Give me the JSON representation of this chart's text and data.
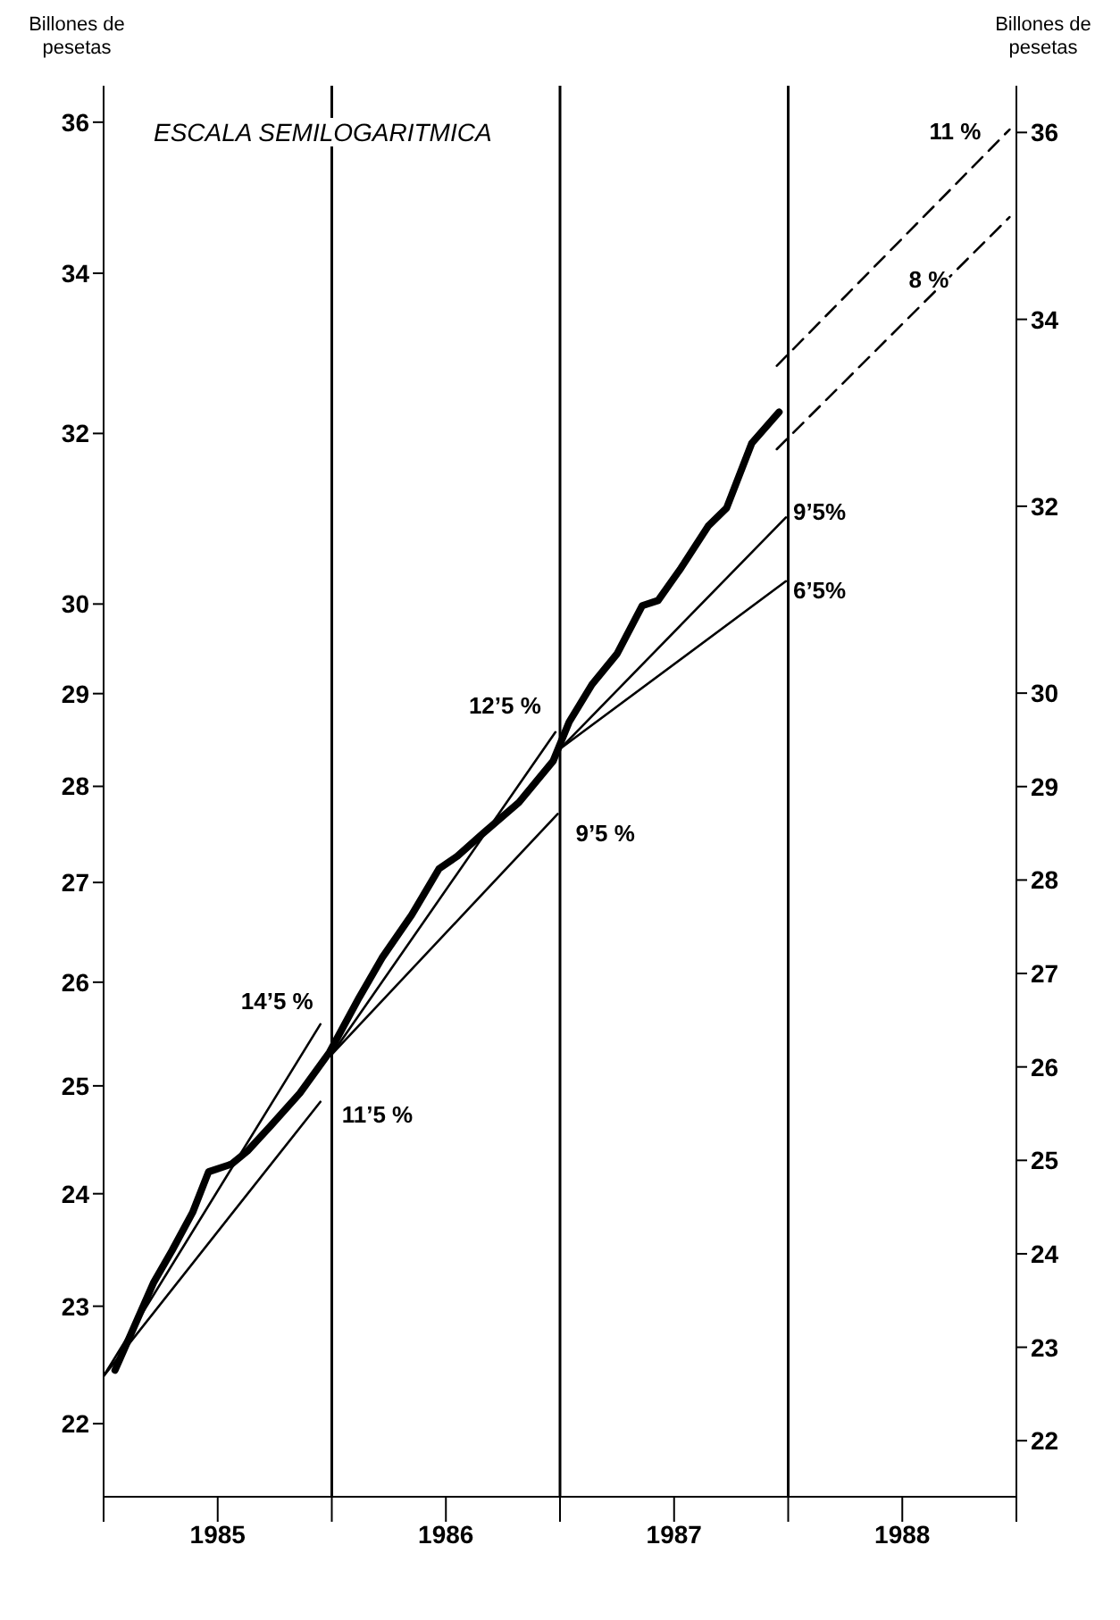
{
  "chart_data": {
    "type": "line",
    "ylabel": "Billones de pesetas",
    "y2label": "Billones de pesetas",
    "annotations": [
      "ESCALA SEMILOGARITMICA"
    ],
    "log": "y",
    "xlim": [
      1985,
      1989
    ],
    "xticks": [
      {
        "value": 1985,
        "label": null
      },
      {
        "value": 1985.5,
        "label": "1985"
      },
      {
        "value": 1986,
        "label": null
      },
      {
        "value": 1986.5,
        "label": "1986"
      },
      {
        "value": 1987,
        "label": null
      },
      {
        "value": 1987.5,
        "label": "1987"
      },
      {
        "value": 1988,
        "label": null
      },
      {
        "value": 1988.5,
        "label": "1988"
      },
      {
        "value": 1989,
        "label": null
      }
    ],
    "ylim": [
      21.4,
      36.5
    ],
    "yticks": [
      22,
      23,
      24,
      25,
      26,
      27,
      28,
      29,
      30,
      32,
      34,
      36
    ],
    "y2lim": [
      21.4,
      36.5
    ],
    "y2ticks": [
      22,
      23,
      24,
      25,
      26,
      27,
      28,
      29,
      30,
      32,
      34,
      36
    ],
    "ref_lines": [
      {
        "axis": "x",
        "value": 1986
      },
      {
        "axis": "x",
        "value": 1987
      },
      {
        "axis": "x",
        "value": 1988
      }
    ],
    "series": [
      {
        "color": "#000000",
        "x": [
          1985.05,
          1985.22,
          1985.3,
          1985.39,
          1985.46,
          1985.56,
          1985.63,
          1985.73,
          1985.86,
          1985.99,
          1986.12,
          1986.22,
          1986.35,
          1986.47,
          1986.55,
          1986.66,
          1986.82,
          1986.97,
          1987.04,
          1987.14,
          1987.25,
          1987.36,
          1987.43,
          1987.53,
          1987.65,
          1987.73,
          1987.84,
          1987.96
        ],
        "values": [
          22.45,
          23.21,
          23.49,
          23.83,
          24.2,
          24.27,
          24.39,
          24.62,
          24.93,
          25.32,
          25.85,
          26.24,
          26.67,
          27.14,
          27.27,
          27.5,
          27.83,
          28.27,
          28.69,
          29.1,
          29.44,
          29.98,
          30.04,
          30.41,
          30.9,
          31.11,
          31.88,
          32.26
        ]
      },
      {
        "name": "14’5 %",
        "color": "#000000",
        "x": [
          1985,
          1985.95
        ],
        "values": [
          22.4,
          25.59
        ]
      },
      {
        "name": "11’5 %",
        "color": "#000000",
        "x": [
          1985,
          1985.95
        ],
        "values": [
          22.4,
          24.85
        ]
      },
      {
        "name": "12’5 %",
        "color": "#000000",
        "x": [
          1986,
          1986.98
        ],
        "values": [
          25.3,
          28.58
        ]
      },
      {
        "name": "9’5 %",
        "color": "#000000",
        "x": [
          1986,
          1986.99
        ],
        "values": [
          25.3,
          27.71
        ]
      },
      {
        "name": "9’5%",
        "color": "#000000",
        "x": [
          1987,
          1987.99
        ],
        "values": [
          28.4,
          31.0
        ]
      },
      {
        "name": "6’5%",
        "color": "#000000",
        "x": [
          1987,
          1987.99
        ],
        "values": [
          28.4,
          30.26
        ]
      },
      {
        "name": "11 %",
        "color": "#000000",
        "line_style": "dashed",
        "x": [
          1987.95,
          1988.97
        ],
        "values": [
          32.83,
          35.9
        ]
      },
      {
        "name": "8 %",
        "color": "#000000",
        "line_style": "dashed",
        "x": [
          1987.95,
          1988.97
        ],
        "values": [
          31.81,
          34.73
        ]
      }
    ]
  }
}
